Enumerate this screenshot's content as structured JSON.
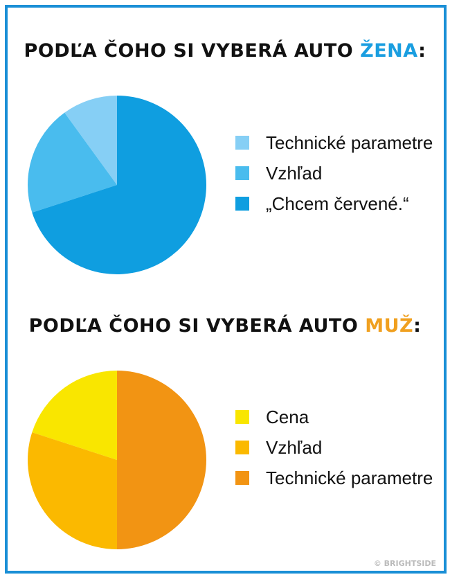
{
  "colors": {
    "frame": "#1a8fd6"
  },
  "chart_data": [
    {
      "type": "pie",
      "title_prefix": "PODĽA ČOHO SI VYBERÁ AUTO ",
      "title_highlight": "ŽENA",
      "title_suffix": ":",
      "highlight_color": "#1a9ee0",
      "slices": [
        {
          "label": "Technické parametre",
          "value": 10,
          "color": "#86cff5"
        },
        {
          "label": "Vzhľad",
          "value": 20,
          "color": "#49bcee"
        },
        {
          "label": "„Chcem červené.“",
          "value": 70,
          "color": "#0f9ee0"
        }
      ]
    },
    {
      "type": "pie",
      "title_prefix": "PODĽA ČOHO SI VYBERÁ AUTO ",
      "title_highlight": "MUŽ",
      "title_suffix": ":",
      "highlight_color": "#f0a020",
      "slices": [
        {
          "label": "Cena",
          "value": 20,
          "color": "#f9e600"
        },
        {
          "label": "Vzhľad",
          "value": 30,
          "color": "#fbb900"
        },
        {
          "label": "Technické parametre",
          "value": 50,
          "color": "#f29413"
        }
      ]
    }
  ],
  "footer": {
    "credit": "© BRIGHTSIDE"
  }
}
